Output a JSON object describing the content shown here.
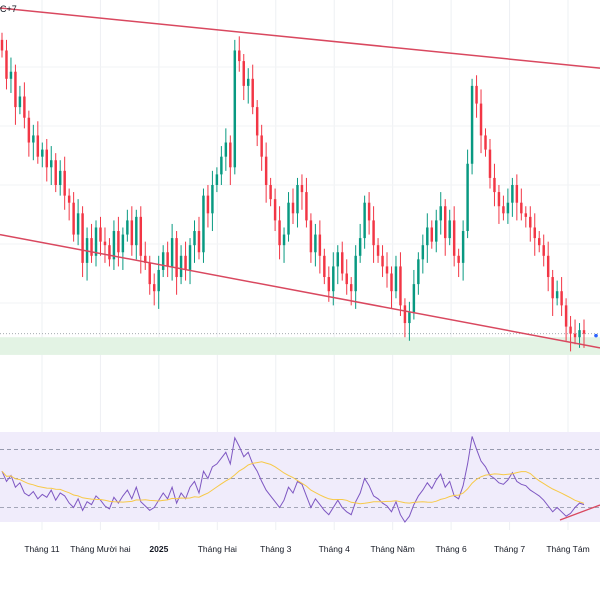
{
  "header": {
    "timezone_fragment": "C+7"
  },
  "colors": {
    "up": "#089981",
    "down": "#f23645",
    "channel": "#d9485f",
    "support_zone": "#e3f3e4",
    "rsi_band": "#f0ecfb",
    "rsi_line": "#7e57c2",
    "rsi_ma": "#f7c948",
    "axis_text": "#131722"
  },
  "chart_data": [
    {
      "type": "candlestick",
      "title": "",
      "xlabel": "",
      "ylabel": "",
      "x_ticks": [
        "Tháng 11",
        "Tháng Mười hai",
        "2025",
        "Tháng Hai",
        "Tháng 3",
        "Tháng 4",
        "Tháng Năm",
        "Tháng 6",
        "Tháng 7",
        "Tháng Tám"
      ],
      "bold_ticks": [
        "2025"
      ],
      "value_range": [
        0,
        100
      ],
      "grid": true,
      "close_values": [
        88,
        80,
        82,
        72,
        75,
        69,
        62,
        64,
        58,
        60,
        55,
        57,
        50,
        54,
        47,
        45,
        36,
        42,
        28,
        35,
        30,
        38,
        34,
        33,
        29,
        37,
        31,
        36,
        40,
        33,
        41,
        30,
        28,
        22,
        20,
        26,
        31,
        27,
        35,
        24,
        30,
        26,
        33,
        37,
        31,
        47,
        42,
        50,
        53,
        58,
        62,
        55,
        88,
        85,
        78,
        80,
        72,
        64,
        58,
        50,
        46,
        40,
        33,
        36,
        45,
        42,
        50,
        48,
        40,
        31,
        36,
        30,
        24,
        20,
        27,
        31,
        25,
        22,
        20,
        30,
        35,
        45,
        40,
        33,
        30,
        27,
        25,
        20,
        27,
        16,
        11,
        14,
        22,
        29,
        33,
        38,
        34,
        40,
        44,
        35,
        40,
        30,
        28,
        37,
        56,
        78,
        73,
        64,
        60,
        52,
        48,
        44,
        42,
        45,
        50,
        45,
        42,
        41,
        38,
        35,
        33,
        30,
        24,
        18,
        20,
        16,
        10,
        8,
        7,
        9,
        8
      ],
      "support_line": {
        "from": 36,
        "to": 4
      },
      "resistance_line": {
        "from": 100,
        "to": 83
      },
      "support_zone": [
        2,
        7
      ],
      "last_price_dotted": 8
    },
    {
      "type": "line",
      "title": "",
      "series_count": 2,
      "levels": [
        70,
        50,
        30
      ],
      "value_range": [
        20,
        82
      ],
      "rsi_values": [
        55,
        48,
        52,
        44,
        47,
        40,
        38,
        41,
        36,
        39,
        37,
        42,
        35,
        40,
        38,
        33,
        30,
        36,
        28,
        34,
        32,
        38,
        35,
        31,
        29,
        37,
        33,
        38,
        42,
        36,
        44,
        34,
        31,
        28,
        30,
        35,
        40,
        36,
        44,
        33,
        40,
        36,
        44,
        48,
        40,
        55,
        50,
        58,
        60,
        64,
        68,
        60,
        78,
        72,
        65,
        68,
        60,
        55,
        48,
        42,
        38,
        34,
        30,
        35,
        44,
        40,
        48,
        46,
        38,
        30,
        36,
        32,
        28,
        25,
        30,
        35,
        30,
        27,
        25,
        34,
        40,
        50,
        45,
        38,
        36,
        33,
        31,
        27,
        34,
        25,
        20,
        24,
        32,
        38,
        42,
        47,
        43,
        49,
        53,
        44,
        48,
        38,
        36,
        45,
        60,
        79,
        70,
        62,
        58,
        52,
        50,
        47,
        46,
        49,
        54,
        48,
        46,
        45,
        42,
        40,
        38,
        35,
        31,
        27,
        30,
        27,
        24,
        26,
        30,
        33,
        32
      ],
      "ma_window": 14
    }
  ]
}
